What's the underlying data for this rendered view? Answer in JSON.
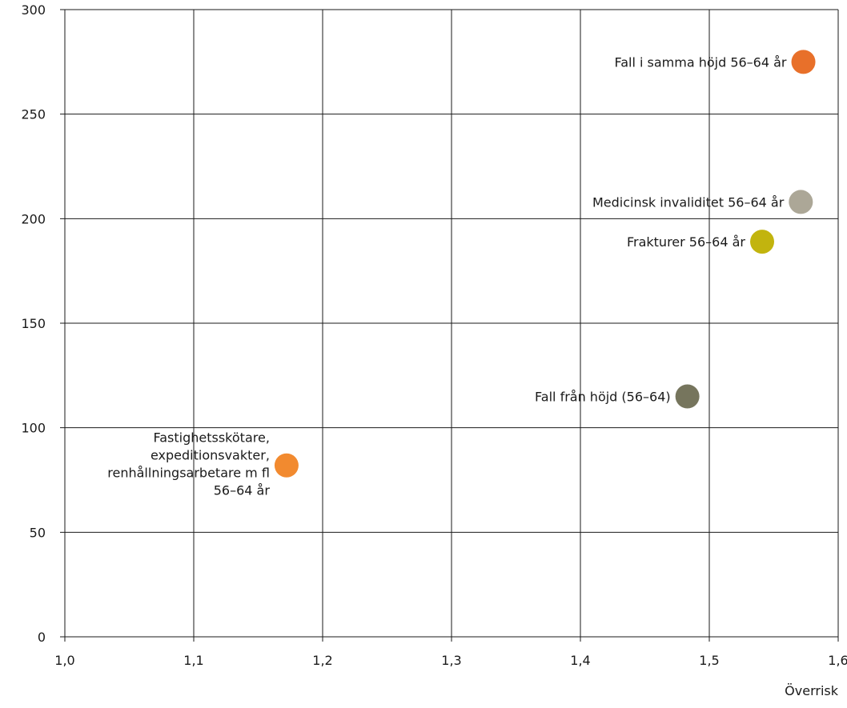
{
  "chart_data": {
    "type": "scatter",
    "xlabel": "Överrisk",
    "ylabel": "",
    "xlim": [
      1.0,
      1.6
    ],
    "ylim": [
      0,
      300
    ],
    "x_ticks": [
      "1,0",
      "1,1",
      "1,2",
      "1,3",
      "1,4",
      "1,5",
      "1,6"
    ],
    "y_ticks": [
      "0",
      "50",
      "100",
      "150",
      "200",
      "250",
      "300"
    ],
    "grid": true,
    "legend": "none",
    "points": [
      {
        "label": "Fall i samma höjd 56–64 år",
        "x": 1.573,
        "y": 275,
        "color": "#e8702a"
      },
      {
        "label": "Medicinsk invaliditet 56–64 år",
        "x": 1.571,
        "y": 208,
        "color": "#aca797"
      },
      {
        "label": "Frakturer 56–64 år",
        "x": 1.541,
        "y": 189,
        "color": "#c2b40e"
      },
      {
        "label": "Fall från höjd (56–64)",
        "x": 1.483,
        "y": 115,
        "color": "#76755d"
      },
      {
        "label": "Fastighetsskötare, expeditionsvakter, renhållningsarbetare m fl 56–64 år",
        "x": 1.172,
        "y": 82,
        "color": "#f28a2f",
        "label_lines": [
          "Fastighetsskötare,",
          "expeditionsvakter,",
          "renhållningsarbetare m fl",
          "56–64 år"
        ]
      }
    ]
  }
}
